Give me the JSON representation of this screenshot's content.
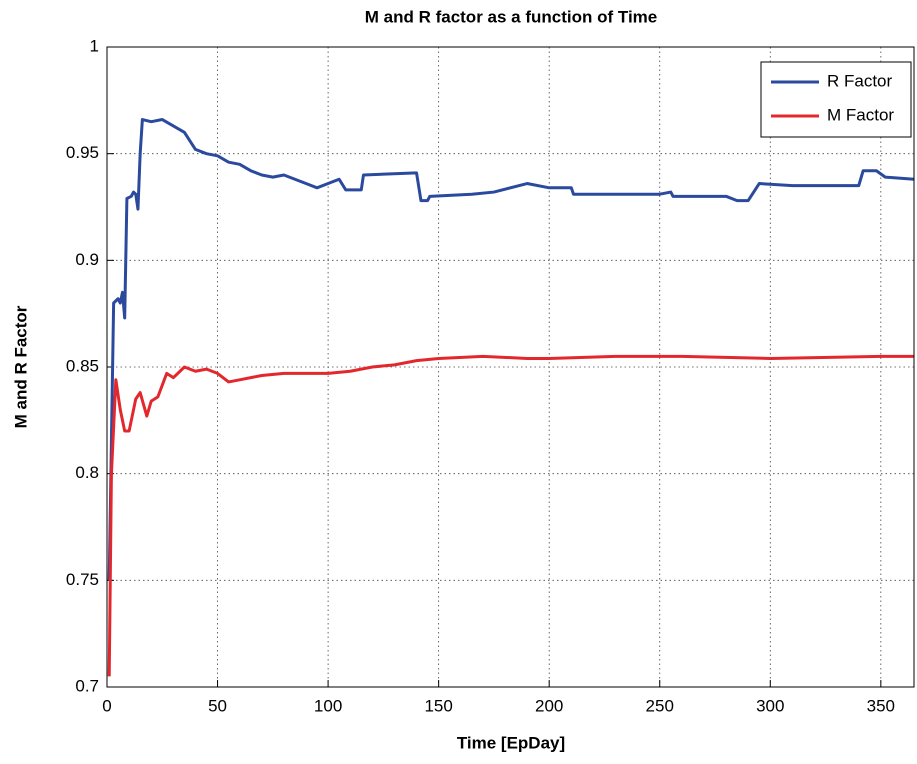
{
  "chart_data": {
    "type": "line",
    "title": "M and R factor as a function of Time",
    "xlabel": "Time [EpDay]",
    "ylabel": "M and R Factor",
    "xlim": [
      0,
      365
    ],
    "xticks": [
      0,
      50,
      100,
      150,
      200,
      250,
      300,
      350
    ],
    "ylim": [
      0.7,
      1
    ],
    "yticks": [
      0.7,
      0.75,
      0.8,
      0.85,
      0.9,
      0.95,
      1
    ],
    "grid": true,
    "legend": "upper right",
    "series": [
      {
        "name": "R Factor",
        "color": "#2b4a9e",
        "x": [
          1,
          3,
          5,
          6,
          7,
          8,
          9,
          11,
          12,
          13,
          14,
          15,
          16,
          20,
          25,
          30,
          35,
          40,
          45,
          50,
          55,
          60,
          65,
          70,
          75,
          80,
          85,
          90,
          95,
          100,
          105,
          108,
          115,
          116,
          140,
          142,
          145,
          146,
          165,
          175,
          190,
          200,
          210,
          211,
          250,
          255,
          256,
          280,
          285,
          290,
          295,
          310,
          330,
          340,
          342,
          348,
          352,
          365
        ],
        "values": [
          0.75,
          0.88,
          0.882,
          0.88,
          0.885,
          0.873,
          0.929,
          0.93,
          0.932,
          0.931,
          0.924,
          0.95,
          0.966,
          0.965,
          0.966,
          0.963,
          0.96,
          0.952,
          0.95,
          0.949,
          0.946,
          0.945,
          0.942,
          0.94,
          0.939,
          0.94,
          0.938,
          0.936,
          0.934,
          0.936,
          0.938,
          0.933,
          0.933,
          0.94,
          0.941,
          0.928,
          0.928,
          0.93,
          0.931,
          0.932,
          0.936,
          0.934,
          0.934,
          0.931,
          0.931,
          0.932,
          0.93,
          0.93,
          0.928,
          0.928,
          0.936,
          0.935,
          0.935,
          0.935,
          0.942,
          0.942,
          0.939,
          0.938
        ]
      },
      {
        "name": "M Factor",
        "color": "#e3282d",
        "x": [
          1,
          2,
          4,
          6,
          8,
          10,
          13,
          15,
          18,
          20,
          23,
          27,
          30,
          35,
          40,
          45,
          50,
          55,
          60,
          70,
          80,
          90,
          100,
          110,
          120,
          130,
          140,
          150,
          170,
          190,
          200,
          230,
          260,
          300,
          350,
          365
        ],
        "values": [
          0.705,
          0.8,
          0.844,
          0.83,
          0.82,
          0.82,
          0.835,
          0.838,
          0.827,
          0.834,
          0.836,
          0.847,
          0.845,
          0.85,
          0.848,
          0.849,
          0.847,
          0.843,
          0.844,
          0.846,
          0.847,
          0.847,
          0.847,
          0.848,
          0.85,
          0.851,
          0.853,
          0.854,
          0.855,
          0.854,
          0.854,
          0.855,
          0.855,
          0.854,
          0.855,
          0.855
        ]
      }
    ]
  }
}
